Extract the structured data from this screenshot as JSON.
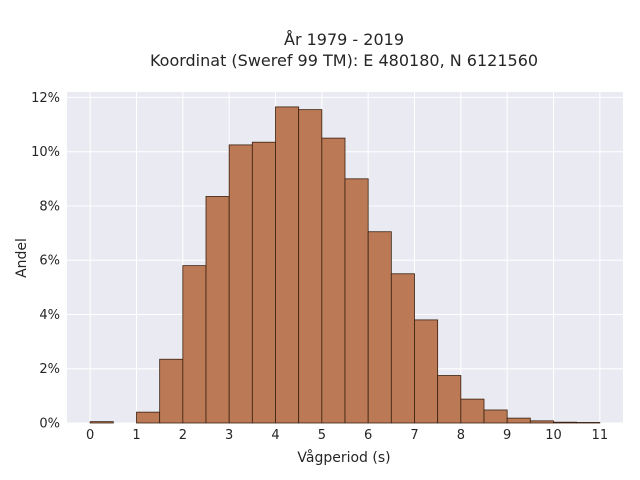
{
  "chart_data": {
    "type": "bar",
    "title": "År 1979 - 2019",
    "subtitle": "Koordinat (Sweref 99 TM): E 480180, N 6121560",
    "xlabel": "Vågperiod (s)",
    "ylabel": "Andel",
    "xlim": [
      -0.5,
      11.5
    ],
    "ylim": [
      0,
      12.2
    ],
    "x_ticks": [
      0,
      1,
      2,
      3,
      4,
      5,
      6,
      7,
      8,
      9,
      10,
      11
    ],
    "y_ticks": [
      0,
      2,
      4,
      6,
      8,
      10,
      12
    ],
    "y_tick_suffix": "%",
    "bin_width": 0.5,
    "bin_starts": [
      0,
      0.5,
      1,
      1.5,
      2,
      2.5,
      3,
      3.5,
      4,
      4.5,
      5,
      5.5,
      6,
      6.5,
      7,
      7.5,
      8,
      8.5,
      9,
      9.5,
      10,
      10.5
    ],
    "values": [
      0.05,
      0.0,
      0.4,
      2.35,
      5.8,
      8.35,
      10.25,
      10.35,
      11.65,
      11.55,
      10.5,
      9.0,
      7.05,
      5.5,
      3.8,
      1.75,
      0.88,
      0.48,
      0.18,
      0.08,
      0.03,
      0.02
    ],
    "grid": true,
    "colors": {
      "bar_fill": "#bb7a55",
      "bar_edge": "#3a2010",
      "plot_background": "#eaeaf2",
      "grid": "#ffffff"
    }
  }
}
